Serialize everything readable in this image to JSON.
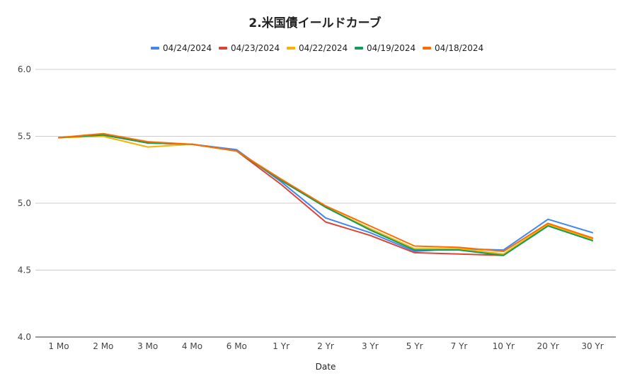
{
  "chart_data": {
    "type": "line",
    "title": "2.米国債イールドカーブ",
    "xlabel": "Date",
    "ylabel": "",
    "ylim": [
      4.0,
      6.0
    ],
    "yticks": [
      "4.0",
      "4.5",
      "5.0",
      "5.5",
      "6.0"
    ],
    "grid": true,
    "legend_position": "top",
    "categories": [
      "1 Mo",
      "2 Mo",
      "3 Mo",
      "4 Mo",
      "6 Mo",
      "1 Yr",
      "2 Yr",
      "3 Yr",
      "5 Yr",
      "7 Yr",
      "10 Yr",
      "20 Yr",
      "30 Yr"
    ],
    "series": [
      {
        "name": "04/24/2024",
        "color": "#4285f4",
        "values": [
          5.49,
          5.51,
          5.45,
          5.44,
          5.4,
          5.16,
          4.89,
          4.78,
          4.64,
          4.66,
          4.65,
          4.88,
          4.78
        ]
      },
      {
        "name": "04/23/2024",
        "color": "#db4437",
        "values": [
          5.49,
          5.51,
          5.45,
          5.44,
          5.39,
          5.14,
          4.86,
          4.76,
          4.63,
          4.62,
          4.61,
          4.84,
          4.74
        ]
      },
      {
        "name": "04/22/2024",
        "color": "#f4b400",
        "values": [
          5.49,
          5.5,
          5.42,
          5.44,
          5.39,
          5.17,
          4.97,
          4.81,
          4.66,
          4.66,
          4.62,
          4.84,
          4.73
        ]
      },
      {
        "name": "04/19/2024",
        "color": "#0f9d58",
        "values": [
          5.49,
          5.51,
          5.45,
          5.44,
          5.39,
          5.17,
          4.97,
          4.8,
          4.65,
          4.65,
          4.61,
          4.83,
          4.72
        ]
      },
      {
        "name": "04/18/2024",
        "color": "#ff6d00",
        "values": [
          5.49,
          5.52,
          5.46,
          5.44,
          5.39,
          5.18,
          4.98,
          4.83,
          4.68,
          4.67,
          4.64,
          4.85,
          4.74
        ]
      }
    ]
  }
}
